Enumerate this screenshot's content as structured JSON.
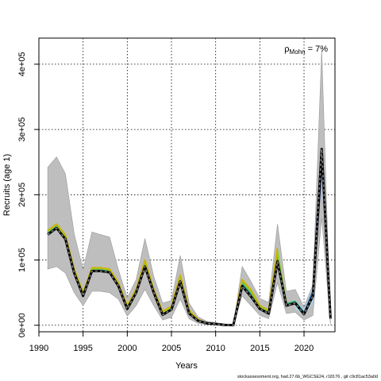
{
  "chart_data": {
    "type": "line",
    "xlabel": "Years",
    "ylabel": "Recruits (age 1)",
    "xlim": [
      1990,
      2023.5
    ],
    "ylim": [
      -10000,
      440000
    ],
    "x_ticks": [
      1990,
      1995,
      2000,
      2005,
      2010,
      2015,
      2020
    ],
    "y_ticks": [
      {
        "value": 0,
        "label": "0e+00"
      },
      {
        "value": 100000,
        "label": "1e+05"
      },
      {
        "value": 200000,
        "label": "2e+05"
      },
      {
        "value": 300000,
        "label": "3e+05"
      },
      {
        "value": 400000,
        "label": "4e+05"
      }
    ],
    "grid": true,
    "annotation": {
      "prefix": "ρ",
      "subscript": "Mohn",
      "suffix": " = 7%"
    },
    "footer": "stockassessment.org, had.27.6b_WGCSE24, r18176 , git c9c81ac53a0d",
    "colors": {
      "ci_band": "#bebebe",
      "ci_edge": "#999999",
      "peel_band": "#a8d8ea",
      "peels": [
        "#1b2a7a",
        "#2b5fa8",
        "#22a0a0",
        "#3cb371",
        "#9acd32",
        "#c8b400"
      ],
      "final": "#000000",
      "final_dash": "#888888"
    },
    "ci_band": {
      "x": [
        1991,
        1992,
        1993,
        1994,
        1995,
        1996,
        1997,
        1998,
        1999,
        2000,
        2001,
        2002,
        2003,
        2004,
        2005,
        2006,
        2007,
        2008,
        2009,
        2010,
        2011,
        2012,
        2013,
        2014,
        2015,
        2016,
        2017,
        2018,
        2019,
        2020,
        2021,
        2022,
        2023
      ],
      "upper": [
        242000,
        258000,
        232000,
        140000,
        85000,
        143000,
        139000,
        135000,
        85000,
        42000,
        70000,
        133000,
        75000,
        34000,
        38000,
        107000,
        34000,
        13000,
        6000,
        4000,
        2000,
        1000,
        90000,
        67000,
        41000,
        35000,
        155000,
        52000,
        55000,
        28000,
        62000,
        422000,
        0
      ],
      "lower": [
        86000,
        90000,
        80000,
        50000,
        30000,
        52000,
        52000,
        50000,
        40000,
        14000,
        30000,
        55000,
        30000,
        8000,
        12000,
        40000,
        10000,
        3000,
        1000,
        500,
        300,
        200,
        45000,
        30000,
        15000,
        10000,
        65000,
        18000,
        20000,
        8000,
        15000,
        165000,
        0
      ]
    },
    "peel_band": {
      "x": [
        2019,
        2020,
        2021,
        2022,
        2023
      ],
      "upper": [
        38000,
        24000,
        60000,
        265000,
        10000
      ],
      "lower": [
        25000,
        15000,
        35000,
        225000,
        8000
      ]
    },
    "series": [
      {
        "x": [
          1991,
          1992,
          1993,
          1994,
          1995,
          1996,
          1997,
          1998,
          1999,
          2000,
          2001,
          2002,
          2003,
          2004,
          2005,
          2006,
          2007,
          2008,
          2009,
          2010,
          2011,
          2012,
          2013,
          2014,
          2015,
          2016,
          2017,
          2018,
          2019,
          2020,
          2021,
          2022
        ],
        "values": [
          139000,
          149000,
          132000,
          80000,
          45000,
          83000,
          83000,
          81000,
          60000,
          25000,
          50000,
          90000,
          50000,
          16000,
          24000,
          67000,
          18000,
          7000,
          3000,
          2000,
          500,
          200,
          60000,
          44000,
          25000,
          18000,
          98000,
          30000,
          34000,
          17000,
          45000,
          245000
        ]
      },
      {
        "x": [
          1991,
          1992,
          1993,
          1994,
          1995,
          1996,
          1997,
          1998,
          1999,
          2000,
          2001,
          2002,
          2003,
          2004,
          2005,
          2006,
          2007,
          2008,
          2009,
          2010,
          2011,
          2012,
          2013,
          2014,
          2015,
          2016,
          2017,
          2018,
          2019,
          2020,
          2021
        ],
        "values": [
          141000,
          151000,
          134000,
          82000,
          46000,
          84000,
          84000,
          82000,
          61000,
          26000,
          51000,
          92000,
          51000,
          17000,
          25000,
          69000,
          19000,
          7000,
          3000,
          2000,
          500,
          200,
          62000,
          46000,
          26000,
          19000,
          102000,
          31000,
          35000,
          18000,
          52000
        ]
      },
      {
        "x": [
          1991,
          1992,
          1993,
          1994,
          1995,
          1996,
          1997,
          1998,
          1999,
          2000,
          2001,
          2002,
          2003,
          2004,
          2005,
          2006,
          2007,
          2008,
          2009,
          2010,
          2011,
          2012,
          2013,
          2014,
          2015,
          2016,
          2017,
          2018,
          2019,
          2020
        ],
        "values": [
          142000,
          152000,
          135000,
          83000,
          47000,
          85000,
          85000,
          83000,
          62000,
          27000,
          52000,
          94000,
          52000,
          18000,
          26000,
          71000,
          20000,
          8000,
          3000,
          2000,
          500,
          200,
          64000,
          48000,
          27000,
          20000,
          106000,
          32000,
          36000,
          20000
        ]
      },
      {
        "x": [
          1991,
          1992,
          1993,
          1994,
          1995,
          1996,
          1997,
          1998,
          1999,
          2000,
          2001,
          2002,
          2003,
          2004,
          2005,
          2006,
          2007,
          2008,
          2009,
          2010,
          2011,
          2012,
          2013,
          2014,
          2015,
          2016,
          2017,
          2018,
          2019
        ],
        "values": [
          143000,
          153000,
          136000,
          84000,
          48000,
          86000,
          86000,
          84000,
          63000,
          28000,
          53000,
          96000,
          53000,
          19000,
          27000,
          73000,
          21000,
          8000,
          3000,
          2000,
          500,
          200,
          66000,
          50000,
          28000,
          21000,
          110000,
          33000,
          37000
        ]
      },
      {
        "x": [
          1991,
          1992,
          1993,
          1994,
          1995,
          1996,
          1997,
          1998,
          1999,
          2000,
          2001,
          2002,
          2003,
          2004,
          2005,
          2006,
          2007,
          2008,
          2009,
          2010,
          2011,
          2012,
          2013,
          2014,
          2015,
          2016,
          2017,
          2018
        ],
        "values": [
          144000,
          154000,
          137000,
          85000,
          49000,
          87000,
          87000,
          85000,
          64000,
          29000,
          54000,
          98000,
          54000,
          20000,
          28000,
          75000,
          22000,
          9000,
          3000,
          2000,
          500,
          200,
          68000,
          52000,
          29000,
          22000,
          114000,
          34000
        ]
      },
      {
        "x": [
          1991,
          1992,
          1993,
          1994,
          1995,
          1996,
          1997,
          1998,
          1999,
          2000,
          2001,
          2002,
          2003,
          2004,
          2005,
          2006,
          2007,
          2008,
          2009,
          2010,
          2011,
          2012,
          2013,
          2014,
          2015,
          2016,
          2017
        ],
        "values": [
          145000,
          155000,
          138000,
          86000,
          50000,
          88000,
          88000,
          86000,
          65000,
          30000,
          55000,
          100000,
          55000,
          21000,
          29000,
          77000,
          23000,
          9000,
          3000,
          2000,
          500,
          200,
          70000,
          54000,
          30000,
          23000,
          118000
        ]
      }
    ],
    "final_estimate": {
      "x": [
        1991,
        1992,
        1993,
        1994,
        1995,
        1996,
        1997,
        1998,
        1999,
        2000,
        2001,
        2002,
        2003,
        2004,
        2005,
        2006,
        2007,
        2008,
        2009,
        2010,
        2011,
        2012,
        2013,
        2014,
        2015,
        2016,
        2017,
        2018,
        2019,
        2020,
        2021,
        2022,
        2023
      ],
      "values": [
        139000,
        149000,
        132000,
        80000,
        45000,
        83000,
        83000,
        81000,
        60000,
        25000,
        50000,
        90000,
        50000,
        16000,
        24000,
        67000,
        18000,
        7000,
        3000,
        2000,
        500,
        200,
        60000,
        44000,
        25000,
        18000,
        98000,
        30000,
        34000,
        17000,
        45000,
        270000,
        10000
      ]
    }
  }
}
